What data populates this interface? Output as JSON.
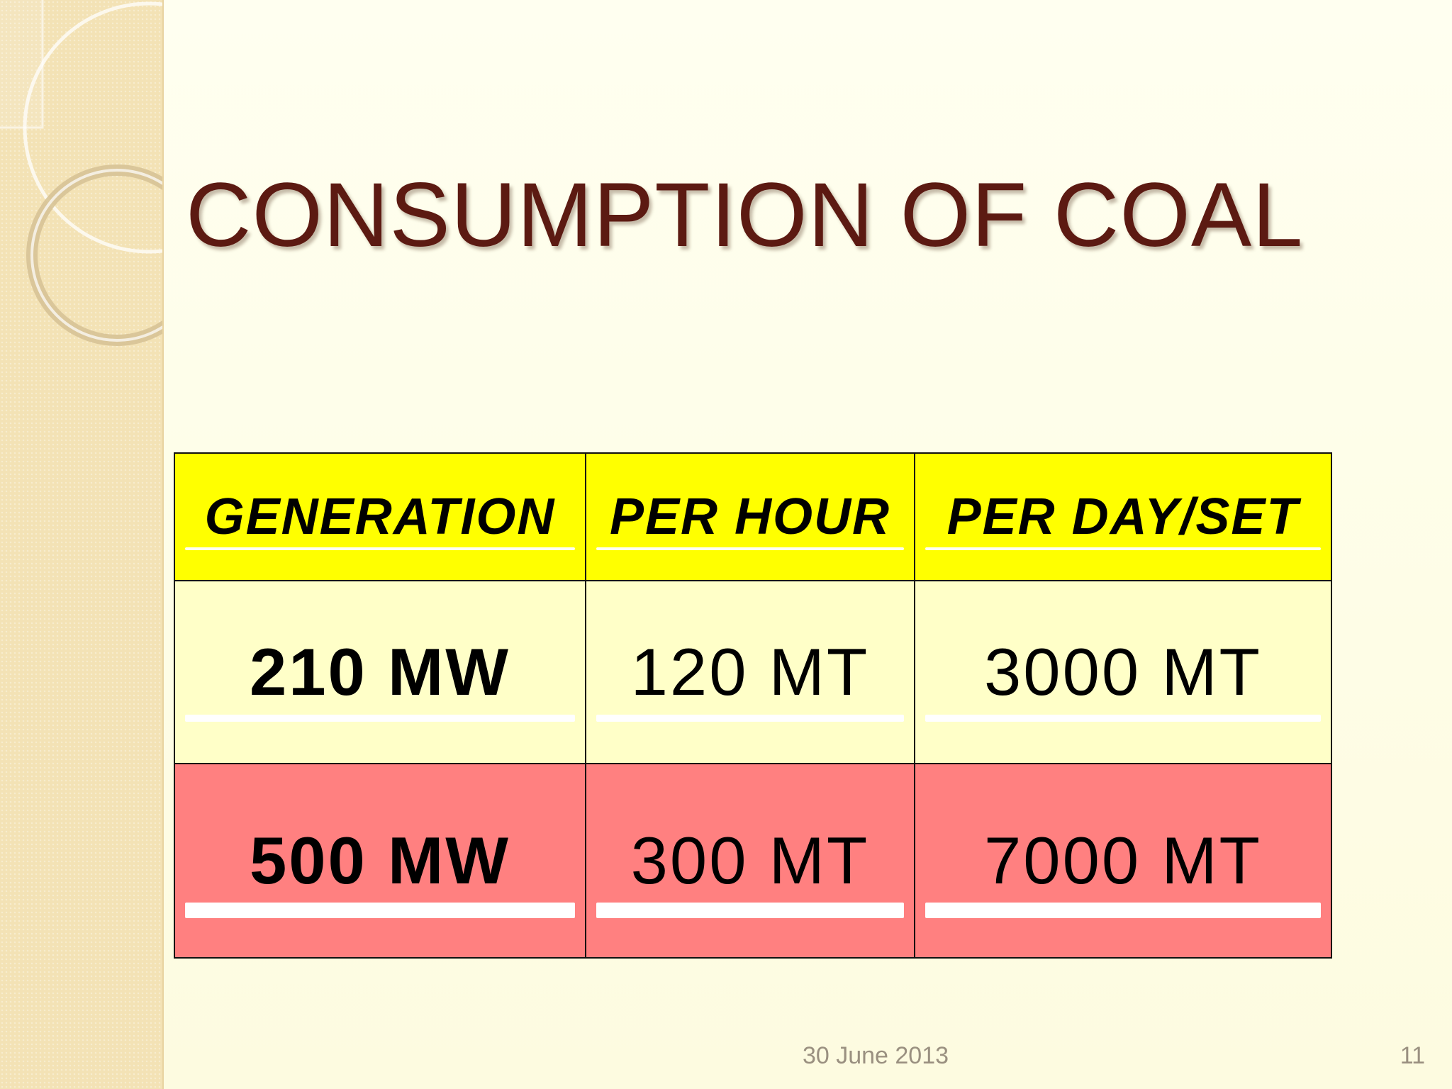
{
  "slide": {
    "title": "CONSUMPTION OF COAL",
    "footer_date": "30 June 2013",
    "page_number": "11"
  },
  "table": {
    "headers": [
      "GENERATION",
      "PER HOUR",
      "PER DAY/SET"
    ],
    "rows": [
      {
        "generation": "210 MW",
        "per_hour": "120 MT",
        "per_day_set": "3000 MT"
      },
      {
        "generation": "500 MW",
        "per_hour": "300 MT",
        "per_day_set": "7000 MT"
      }
    ]
  },
  "colors": {
    "title": "#5c1a12",
    "header_bg": "#ffff00",
    "row1_bg": "#ffffc8",
    "row2_bg": "#ff8080",
    "side_panel": "#f3e2b5",
    "slide_bg": "#fefde6"
  }
}
